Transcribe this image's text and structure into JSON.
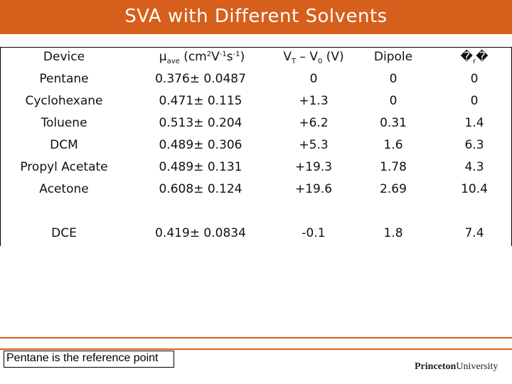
{
  "title": "SVA with Different Solvents",
  "table": {
    "headers": {
      "device": "Device",
      "mobility_main": "μ",
      "mobility_sub": "ave",
      "mobility_units_pre": " (cm",
      "mobility_sup1": "2",
      "mobility_mid": "V",
      "mobility_sup2": "-1",
      "mobility_mid2": "s",
      "mobility_sup3": "-1",
      "mobility_close": ")",
      "vt_main_a": "V",
      "vt_sub_a": "T",
      "vt_mid": " – V",
      "vt_sub_b": "0",
      "vt_close": " (V)",
      "dipole": "Dipole",
      "last": "�",
      "last_sub": "r",
      "last_tail": "�"
    },
    "rows": [
      {
        "device": "Pentane",
        "mobility": "0.376± 0.0487",
        "vt": "0",
        "dipole": "0",
        "last": "0"
      },
      {
        "device": "Cyclohexane",
        "mobility": "0.471± 0.115",
        "vt": "+1.3",
        "dipole": "0",
        "last": "0"
      },
      {
        "device": "Toluene",
        "mobility": "0.513± 0.204",
        "vt": "+6.2",
        "dipole": "0.31",
        "last": "1.4"
      },
      {
        "device": "DCM",
        "mobility": "0.489± 0.306",
        "vt": "+5.3",
        "dipole": "1.6",
        "last": "6.3"
      },
      {
        "device": "Propyl Acetate",
        "mobility": "0.489± 0.131",
        "vt": "+19.3",
        "dipole": "1.78",
        "last": "4.3"
      },
      {
        "device": "Acetone",
        "mobility": "0.608± 0.124",
        "vt": "+19.6",
        "dipole": "2.69",
        "last": "10.4"
      },
      {
        "device": "DCE",
        "mobility": "0.419± 0.0834",
        "vt": "-0.1",
        "dipole": "1.8",
        "last": "7.4"
      }
    ]
  },
  "note": "Pentane is the reference point",
  "logo": {
    "bold": "Princeton",
    "regular": "University"
  },
  "colors": {
    "accent": "#d65f1b"
  }
}
